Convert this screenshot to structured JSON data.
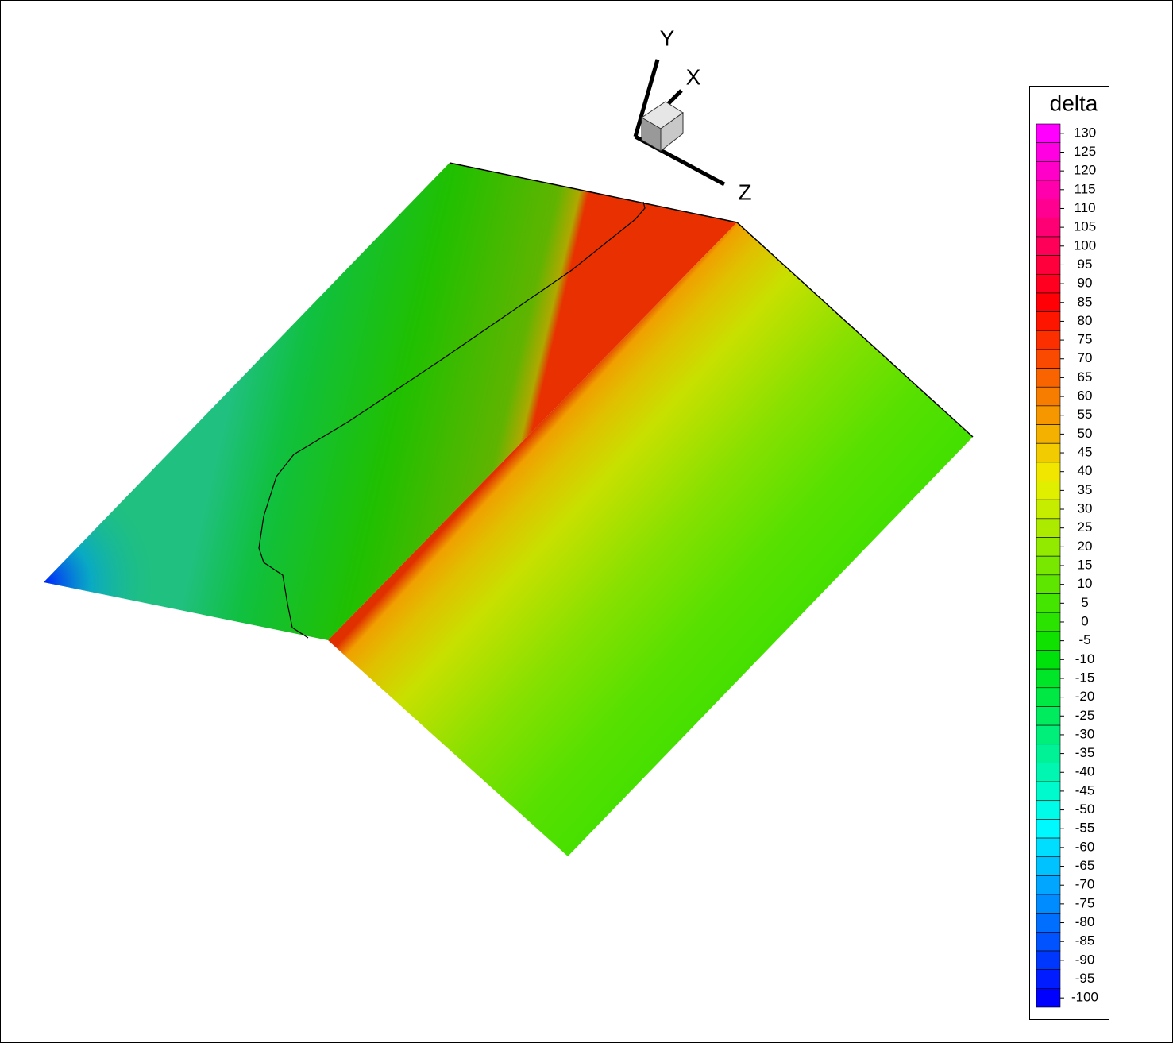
{
  "chart_data": {
    "type": "contour",
    "colorbar_title": "delta",
    "axis_labels": [
      "X",
      "Y",
      "Z"
    ],
    "ylim": [
      -102.5,
      132.5
    ],
    "yticks": [
      130,
      125,
      120,
      115,
      110,
      105,
      100,
      95,
      90,
      85,
      80,
      75,
      70,
      65,
      60,
      55,
      50,
      45,
      40,
      35,
      30,
      25,
      20,
      15,
      10,
      5,
      0,
      -5,
      -10,
      -15,
      -20,
      -25,
      -30,
      -35,
      -40,
      -45,
      -50,
      -55,
      -60,
      -65,
      -70,
      -75,
      -80,
      -85,
      -90,
      -95,
      -100
    ],
    "colormap": [
      "#0000ff",
      "#00ffff",
      "#00e000",
      "#f0f000",
      "#ff0000",
      "#ff00ff"
    ]
  }
}
